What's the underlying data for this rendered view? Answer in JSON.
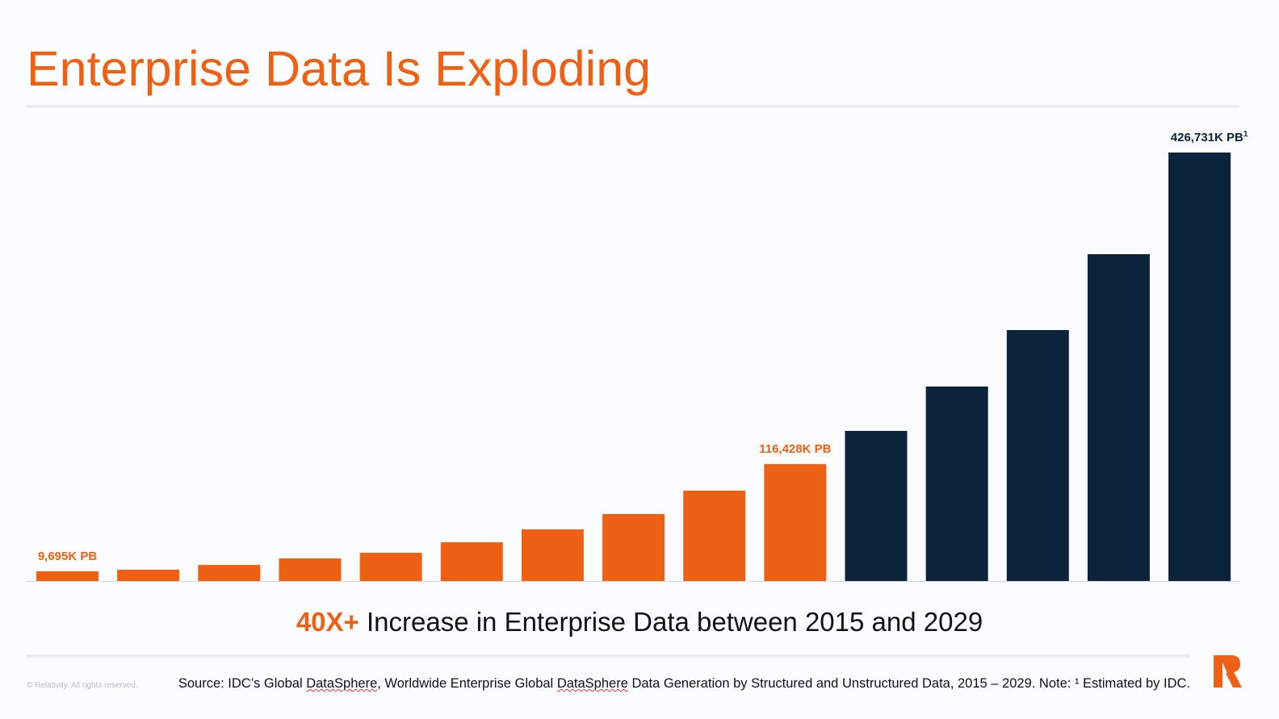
{
  "title": "Enterprise Data Is Exploding",
  "chart_data": {
    "type": "bar",
    "values": [
      9695,
      11300,
      16000,
      22500,
      28100,
      38600,
      51400,
      66700,
      90000,
      116428,
      149500,
      193700,
      249900,
      325500,
      426731
    ],
    "colors": [
      "#ee6014",
      "#ee6014",
      "#ee6014",
      "#ee6014",
      "#ee6014",
      "#ee6014",
      "#ee6014",
      "#ee6014",
      "#ee6014",
      "#ee6014",
      "#0b233b",
      "#0b233b",
      "#0b233b",
      "#0b233b",
      "#0b233b"
    ],
    "data_labels": [
      {
        "index": 0,
        "text": "9,695K PB",
        "color": "#ee6014"
      },
      {
        "index": 9,
        "text": "116,428K PB",
        "color": "#ee6014"
      },
      {
        "index": 14,
        "text": "426,731K  PB",
        "sup": "1",
        "color": "#0b233b"
      }
    ],
    "ylim": [
      0,
      426731
    ],
    "grid": false,
    "xlabel": "",
    "ylabel": ""
  },
  "caption": {
    "highlight": "40X+",
    "text": " Increase in Enterprise Data between 2015 and 2029"
  },
  "footer": {
    "copyright": "© Relativity. All rights reserved.",
    "source_parts": [
      "Source: IDC’s Global ",
      "DataSphere",
      ", Worldwide Enterprise Global ",
      "DataSphere",
      " Data Generation by Structured and Unstructured Data, 2015 – 2029. Note: ¹ Estimated by IDC."
    ]
  },
  "logo": {
    "text": "R",
    "color": "#ee6014"
  }
}
